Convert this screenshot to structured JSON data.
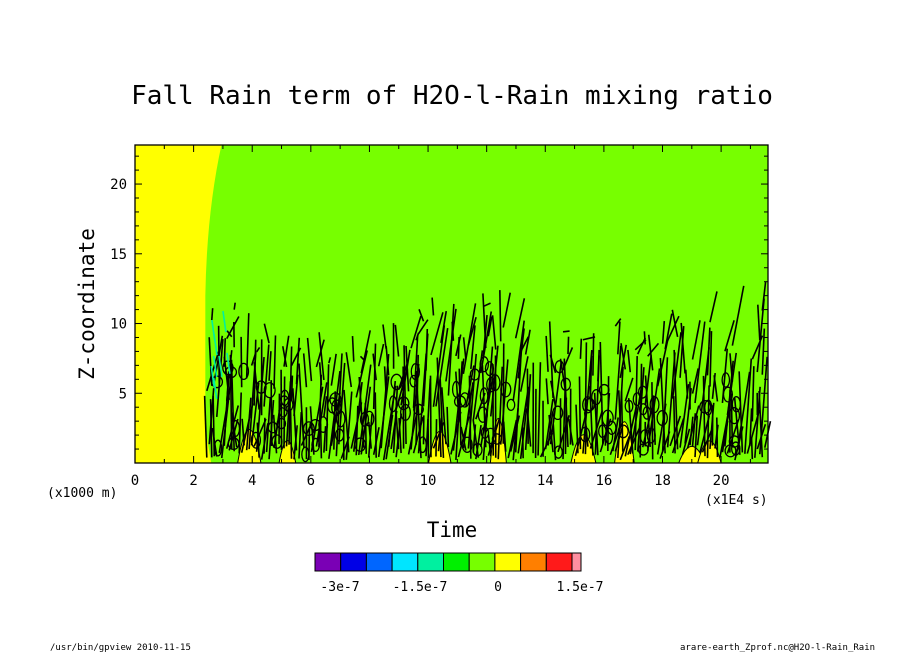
{
  "chart_data": {
    "type": "heatmap",
    "title": "Fall Rain term of H2O-l-Rain mixing ratio",
    "xlabel": "Time",
    "ylabel": "Z-coordinate",
    "x_unit": "(x1E4 s)",
    "y_unit": "(x1000 m)",
    "xlim": [
      0,
      21.6
    ],
    "ylim": [
      0,
      22.8
    ],
    "x_ticks": [
      "0",
      "2",
      "4",
      "6",
      "8",
      "10",
      "12",
      "14",
      "16",
      "18",
      "20"
    ],
    "y_ticks": [
      "5",
      "10",
      "15",
      "20"
    ],
    "regions": [
      {
        "name": "yellow-near-zero",
        "x_range": [
          0,
          2.8
        ],
        "y_range": [
          0,
          22.8
        ],
        "level_bin": "0 to 7.5e-8"
      },
      {
        "name": "green-background",
        "x_range": [
          2.8,
          21.6
        ],
        "y_range": [
          0,
          22.8
        ],
        "level_bin": "-7.5e-8 to 0"
      },
      {
        "name": "dense-contour-band",
        "x_range": [
          2.4,
          21.6
        ],
        "y_range": [
          0,
          10.5
        ],
        "level_bin": "mixed"
      }
    ],
    "contour_band_tops": [
      {
        "x": 2.5,
        "top": 12.0
      },
      {
        "x": 3.5,
        "top": 11.5
      },
      {
        "x": 5.0,
        "top": 9.5
      },
      {
        "x": 8.0,
        "top": 10.2
      },
      {
        "x": 10.5,
        "top": 12.5
      },
      {
        "x": 12.5,
        "top": 13.0
      },
      {
        "x": 14.0,
        "top": 10.3
      },
      {
        "x": 17.0,
        "top": 10.5
      },
      {
        "x": 19.5,
        "top": 12.5
      },
      {
        "x": 21.5,
        "top": 13.0
      }
    ],
    "colorbar": {
      "colors": [
        "#7a00b5",
        "#0000e6",
        "#0066ff",
        "#00e5ff",
        "#00f0a0",
        "#00f000",
        "#77ff00",
        "#ffff00",
        "#ff7f00",
        "#ff1a1a",
        "#ff8fa0"
      ],
      "labels": [
        "-3e-7",
        "-1.5e-7",
        "0",
        "1.5e-7"
      ]
    }
  },
  "footer": {
    "left": "/usr/bin/gpview   2010-11-15",
    "right": "arare-earth_Zprof.nc@H2O-l-Rain_Rain"
  }
}
